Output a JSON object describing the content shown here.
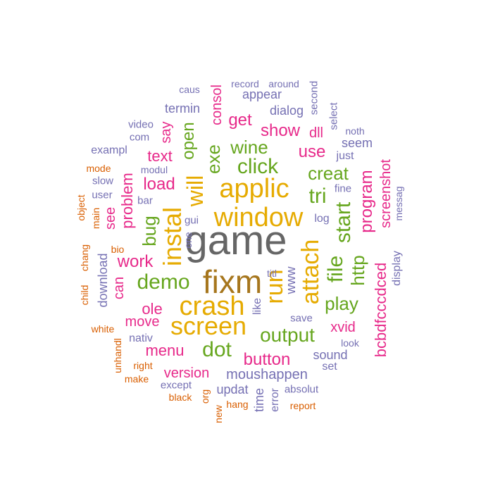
{
  "colors": {
    "gray": "#666666",
    "gold": "#e6ab02",
    "green": "#66a61e",
    "pink": "#e7298a",
    "purple": "#7570b3",
    "orange": "#d95f02",
    "brown": "#a6761d"
  },
  "words": [
    {
      "t": "game",
      "c": "gray"
    },
    {
      "t": "fixm",
      "c": "brown"
    },
    {
      "t": "window",
      "c": "gold"
    },
    {
      "t": "applic",
      "c": "gold"
    },
    {
      "t": "crash",
      "c": "gold"
    },
    {
      "t": "screen",
      "c": "gold"
    },
    {
      "t": "instal",
      "c": "gold"
    },
    {
      "t": "run",
      "c": "gold"
    },
    {
      "t": "attach",
      "c": "gold"
    },
    {
      "t": "will",
      "c": "gold"
    },
    {
      "t": "click",
      "c": "green"
    },
    {
      "t": "demo",
      "c": "green"
    },
    {
      "t": "dot",
      "c": "green"
    },
    {
      "t": "output",
      "c": "green"
    },
    {
      "t": "file",
      "c": "green"
    },
    {
      "t": "start",
      "c": "green"
    },
    {
      "t": "tri",
      "c": "green"
    },
    {
      "t": "creat",
      "c": "green"
    },
    {
      "t": "wine",
      "c": "green"
    },
    {
      "t": "play",
      "c": "green"
    },
    {
      "t": "http",
      "c": "green"
    },
    {
      "t": "exe",
      "c": "green"
    },
    {
      "t": "open",
      "c": "green"
    },
    {
      "t": "bug",
      "c": "green"
    },
    {
      "t": "consol",
      "c": "pink"
    },
    {
      "t": "get",
      "c": "pink"
    },
    {
      "t": "show",
      "c": "pink"
    },
    {
      "t": "use",
      "c": "pink"
    },
    {
      "t": "program",
      "c": "pink"
    },
    {
      "t": "screenshot",
      "c": "pink"
    },
    {
      "t": "bcbdfcccdced",
      "c": "pink"
    },
    {
      "t": "text",
      "c": "pink"
    },
    {
      "t": "load",
      "c": "pink"
    },
    {
      "t": "say",
      "c": "pink"
    },
    {
      "t": "problem",
      "c": "pink"
    },
    {
      "t": "work",
      "c": "pink"
    },
    {
      "t": "can",
      "c": "pink"
    },
    {
      "t": "see",
      "c": "pink"
    },
    {
      "t": "ole",
      "c": "pink"
    },
    {
      "t": "move",
      "c": "pink"
    },
    {
      "t": "menu",
      "c": "pink"
    },
    {
      "t": "version",
      "c": "pink"
    },
    {
      "t": "button",
      "c": "pink"
    },
    {
      "t": "xvid",
      "c": "pink"
    },
    {
      "t": "dll",
      "c": "pink"
    },
    {
      "t": "caus",
      "c": "purple"
    },
    {
      "t": "record",
      "c": "purple"
    },
    {
      "t": "around",
      "c": "purple"
    },
    {
      "t": "appear",
      "c": "purple"
    },
    {
      "t": "second",
      "c": "purple"
    },
    {
      "t": "termin",
      "c": "purple"
    },
    {
      "t": "dialog",
      "c": "purple"
    },
    {
      "t": "select",
      "c": "purple"
    },
    {
      "t": "noth",
      "c": "purple"
    },
    {
      "t": "video",
      "c": "purple"
    },
    {
      "t": "com",
      "c": "purple"
    },
    {
      "t": "seem",
      "c": "purple"
    },
    {
      "t": "exampl",
      "c": "purple"
    },
    {
      "t": "just",
      "c": "purple"
    },
    {
      "t": "modul",
      "c": "purple"
    },
    {
      "t": "messag",
      "c": "purple"
    },
    {
      "t": "slow",
      "c": "purple"
    },
    {
      "t": "user",
      "c": "purple"
    },
    {
      "t": "fine",
      "c": "purple"
    },
    {
      "t": "bar",
      "c": "purple"
    },
    {
      "t": "log",
      "c": "purple"
    },
    {
      "t": "gui",
      "c": "purple"
    },
    {
      "t": "one",
      "c": "purple"
    },
    {
      "t": "display",
      "c": "purple"
    },
    {
      "t": "download",
      "c": "purple"
    },
    {
      "t": "titl",
      "c": "purple"
    },
    {
      "t": "www",
      "c": "purple"
    },
    {
      "t": "like",
      "c": "purple"
    },
    {
      "t": "save",
      "c": "purple"
    },
    {
      "t": "nativ",
      "c": "purple"
    },
    {
      "t": "look",
      "c": "purple"
    },
    {
      "t": "sound",
      "c": "purple"
    },
    {
      "t": "set",
      "c": "purple"
    },
    {
      "t": "moushappen",
      "c": "purple"
    },
    {
      "t": "except",
      "c": "purple"
    },
    {
      "t": "updat",
      "c": "purple"
    },
    {
      "t": "time",
      "c": "purple"
    },
    {
      "t": "absolut",
      "c": "purple"
    },
    {
      "t": "error",
      "c": "purple"
    },
    {
      "t": "mode",
      "c": "orange"
    },
    {
      "t": "main",
      "c": "orange"
    },
    {
      "t": "object",
      "c": "orange"
    },
    {
      "t": "bio",
      "c": "orange"
    },
    {
      "t": "chang",
      "c": "orange"
    },
    {
      "t": "child",
      "c": "orange"
    },
    {
      "t": "white",
      "c": "orange"
    },
    {
      "t": "unhandl",
      "c": "orange"
    },
    {
      "t": "right",
      "c": "orange"
    },
    {
      "t": "make",
      "c": "orange"
    },
    {
      "t": "black",
      "c": "orange"
    },
    {
      "t": "org",
      "c": "orange"
    },
    {
      "t": "hang",
      "c": "orange"
    },
    {
      "t": "new",
      "c": "orange"
    },
    {
      "t": "report",
      "c": "orange"
    }
  ]
}
